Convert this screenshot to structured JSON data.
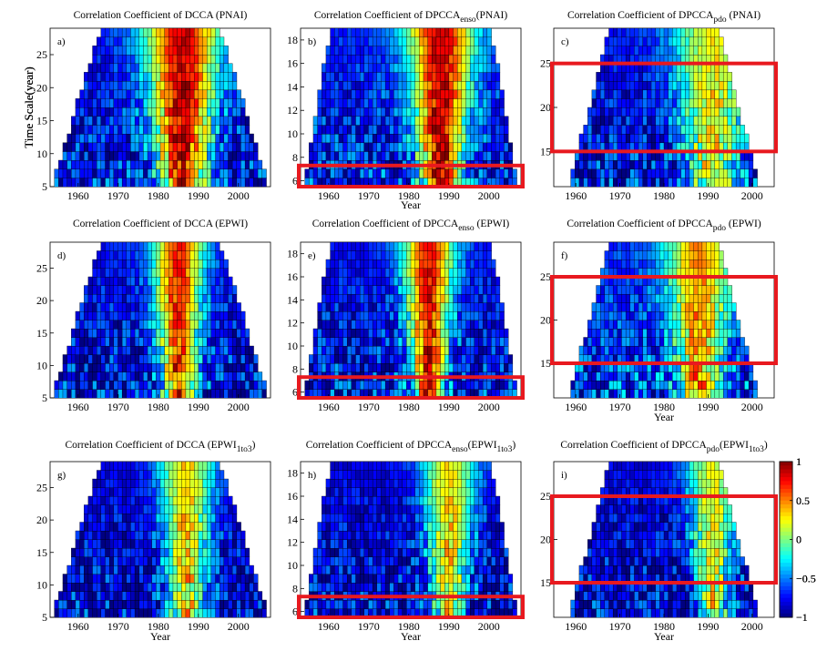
{
  "figure": {
    "x_label": "Year",
    "y_label": "Time Scale(year)",
    "colorbar_ticks": [
      "1",
      "0.5",
      "0",
      "−0.5",
      "−1"
    ]
  },
  "colors": {
    "highlight": "#e8191f",
    "grid_line": "#000000",
    "colormap": "jet"
  },
  "chart_data": [
    {
      "type": "heatmap",
      "panel": "a)",
      "title": "Correlation Coefficient of DCCA (PNAI)",
      "xlabel": "",
      "ylabel": "Time Scale(year)",
      "xlim": [
        1953,
        2008
      ],
      "ylim": [
        5,
        29
      ],
      "x_ticks": [
        1960,
        1970,
        1980,
        1990,
        2000
      ],
      "y_ticks": [
        5,
        10,
        15,
        20,
        25
      ],
      "hot_center_year": 1986,
      "hot_peak": 0.85,
      "hot_width": 9,
      "background_level": -0.75,
      "colorbar": false
    },
    {
      "type": "heatmap",
      "panel": "d)",
      "title": "Correlation Coefficient of DCCA (EPWI)",
      "xlabel": "",
      "ylabel": "",
      "xlim": [
        1953,
        2008
      ],
      "ylim": [
        5,
        29
      ],
      "x_ticks": [
        1960,
        1970,
        1980,
        1990,
        2000
      ],
      "y_ticks": [
        5,
        10,
        15,
        20,
        25
      ],
      "hot_center_year": 1985,
      "hot_peak": 0.7,
      "hot_width": 6,
      "background_level": -0.75,
      "colorbar": false
    },
    {
      "type": "heatmap",
      "panel": "g)",
      "title": "Correlation Coefficient of DCCA (EPWI1to3)",
      "title_main": "Correlation Coefficient of DCCA (EPWI",
      "title_sub": "1to3",
      "title_end": ")",
      "xlabel": "Year",
      "ylabel": "",
      "xlim": [
        1953,
        2008
      ],
      "ylim": [
        5,
        29
      ],
      "x_ticks": [
        1960,
        1970,
        1980,
        1990,
        2000
      ],
      "y_ticks": [
        5,
        10,
        15,
        20,
        25
      ],
      "hot_center_year": 1987,
      "hot_peak": 0.35,
      "hot_width": 6,
      "background_level": -0.8,
      "colorbar": true,
      "colorbar_range": [
        -1,
        1
      ]
    },
    {
      "type": "heatmap",
      "panel": "b)",
      "title": "Correlation Coefficient of DPCCAenso (PNAI)",
      "title_main": "Correlation Coefficient of DPCCA",
      "title_sub": "enso",
      "title_end": "(PNAI)",
      "xlabel": "Year",
      "ylabel": "Time Scale(year)",
      "xlim": [
        1953,
        2008
      ],
      "ylim": [
        5.5,
        19
      ],
      "x_ticks": [
        1960,
        1970,
        1980,
        1990,
        2000
      ],
      "y_ticks": [
        6,
        8,
        10,
        12,
        14,
        16,
        18
      ],
      "hot_center_year": 1988,
      "hot_peak": 0.85,
      "hot_width": 8,
      "background_level": -0.7,
      "colorbar": false,
      "highlight_y": [
        5.5,
        7.3
      ]
    },
    {
      "type": "heatmap",
      "panel": "e)",
      "title": "Correlation Coefficient of DPCCAenso (EPWI)",
      "title_main": "Correlation Coefficient of DPCCA",
      "title_sub": "enso",
      "title_end": " (EPWI)",
      "xlabel": "",
      "ylabel": "",
      "xlim": [
        1953,
        2008
      ],
      "ylim": [
        5.5,
        19
      ],
      "x_ticks": [
        1960,
        1970,
        1980,
        1990,
        2000
      ],
      "y_ticks": [
        6,
        8,
        10,
        12,
        14,
        16,
        18
      ],
      "hot_center_year": 1985,
      "hot_peak": 0.75,
      "hot_width": 6,
      "background_level": -0.75,
      "colorbar": false,
      "highlight_y": [
        5.5,
        7.3
      ]
    },
    {
      "type": "heatmap",
      "panel": "h)",
      "title": "Correlation Coefficient of DPCCAenso(EPWI1to3)",
      "title_main": "Correlation Coefficient of DPCCA",
      "title_sub": "enso",
      "title_end": "(EPWI",
      "title_sub2": "1to3",
      "title_end2": ")",
      "xlabel": "Year",
      "ylabel": "",
      "xlim": [
        1953,
        2008
      ],
      "ylim": [
        5.5,
        19
      ],
      "x_ticks": [
        1960,
        1970,
        1980,
        1990,
        2000
      ],
      "y_ticks": [
        6,
        8,
        10,
        12,
        14,
        16,
        18
      ],
      "hot_center_year": 1990,
      "hot_peak": 0.3,
      "hot_width": 6,
      "background_level": -0.8,
      "colorbar": true,
      "colorbar_range": [
        -1,
        1
      ],
      "highlight_y": [
        5.5,
        7.3
      ]
    },
    {
      "type": "heatmap",
      "panel": "c)",
      "title": "Correlation Coefficient of DPCCApdo (PNAI)",
      "title_main": "Correlation Coefficient of DPCCA",
      "title_sub": "pdo",
      "title_end": " (PNAI)",
      "xlabel": "",
      "ylabel": "Time Scale(year)",
      "xlim": [
        1955,
        2005
      ],
      "ylim": [
        11,
        29
      ],
      "x_ticks": [
        1960,
        1970,
        1980,
        1990,
        2000
      ],
      "y_ticks": [
        15,
        20,
        25
      ],
      "hot_center_year": 1991,
      "hot_peak": 0.25,
      "hot_width": 8,
      "background_level": -0.75,
      "colorbar": false,
      "highlight_y": [
        15,
        25
      ]
    },
    {
      "type": "heatmap",
      "panel": "f)",
      "title": "Correlation Coefficient of DPCCApdo (EPWI)",
      "title_main": "Correlation Coefficient of DPCCA",
      "title_sub": "pdo",
      "title_end": " (EPWI)",
      "xlabel": "Year",
      "ylabel": "",
      "xlim": [
        1955,
        2005
      ],
      "ylim": [
        11,
        29
      ],
      "x_ticks": [
        1960,
        1970,
        1980,
        1990,
        2000
      ],
      "y_ticks": [
        15,
        20,
        25
      ],
      "hot_center_year": 1988,
      "hot_peak": 0.45,
      "hot_width": 7,
      "background_level": -0.65,
      "colorbar": false,
      "highlight_y": [
        15,
        25
      ]
    },
    {
      "type": "heatmap",
      "panel": "i)",
      "title": "Correlation Coefficient of DPCCApdo(EPWI1to3)",
      "title_main": "Correlation Coefficient of DPCCA",
      "title_sub": "pdo",
      "title_end": "(EPWI",
      "title_sub2": "1to3",
      "title_end2": ")",
      "xlabel": "Year",
      "ylabel": "",
      "xlim": [
        1955,
        2005
      ],
      "ylim": [
        11,
        29
      ],
      "x_ticks": [
        1960,
        1970,
        1980,
        1990,
        2000
      ],
      "y_ticks": [
        15,
        20,
        25
      ],
      "hot_center_year": 1991,
      "hot_peak": 0.2,
      "hot_width": 5,
      "background_level": -0.8,
      "colorbar": true,
      "colorbar_range": [
        -1,
        1
      ],
      "highlight_y": [
        15,
        25
      ]
    }
  ]
}
